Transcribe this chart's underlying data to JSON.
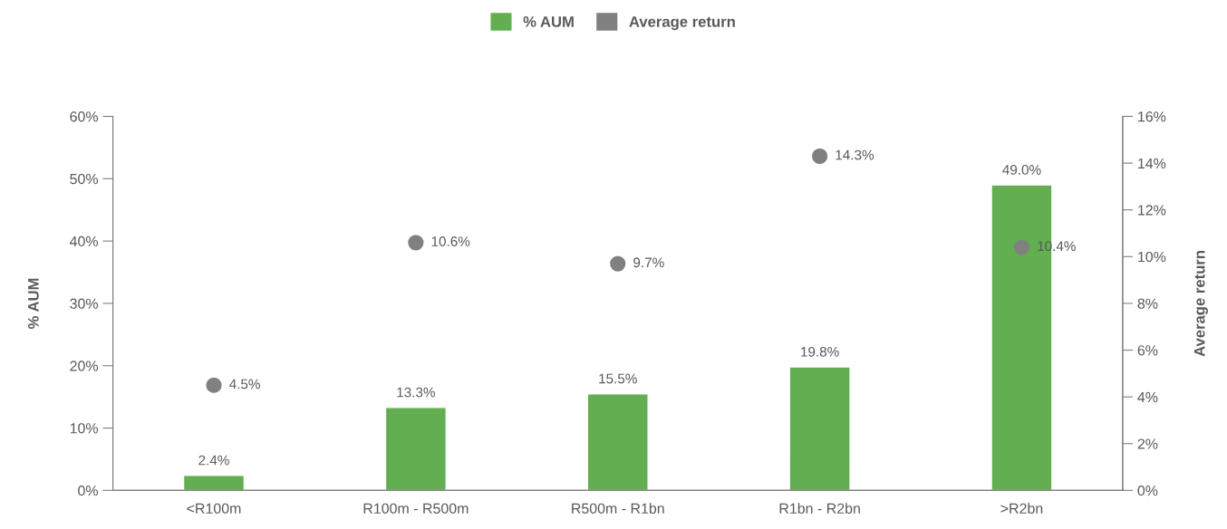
{
  "chart_data": {
    "type": "bar",
    "categories": [
      "<R100m",
      "R100m - R500m",
      "R500m - R1bn",
      "R1bn - R2bn",
      ">R2bn"
    ],
    "ylabel": "% AUM",
    "y2label": "Average return",
    "series": [
      {
        "name": "% AUM",
        "color": "#62ae50",
        "values": [
          2.4,
          13.3,
          15.5,
          19.8,
          49.0
        ],
        "value_labels": [
          "2.4%",
          "13.3%",
          "15.5%",
          "19.8%",
          "49.0%"
        ]
      },
      {
        "name": "Average return",
        "type": "scatter",
        "axis": "y2",
        "marker": "circle",
        "color": "#808080",
        "values": [
          4.5,
          10.6,
          9.7,
          14.3,
          10.4
        ],
        "value_labels": [
          "4.5%",
          "10.6%",
          "9.7%",
          "14.3%",
          "10.4%"
        ]
      }
    ],
    "ylim": [
      0,
      60
    ],
    "yticks": [
      {
        "value": 0,
        "label": "0%"
      },
      {
        "value": 10,
        "label": "10%"
      },
      {
        "value": 20,
        "label": "20%"
      },
      {
        "value": 30,
        "label": "30%"
      },
      {
        "value": 40,
        "label": "40%"
      },
      {
        "value": 50,
        "label": "50%"
      },
      {
        "value": 60,
        "label": "60%"
      }
    ],
    "y2lim": [
      0,
      16
    ],
    "y2ticks": [
      {
        "value": 0,
        "label": "0%"
      },
      {
        "value": 2,
        "label": "2%"
      },
      {
        "value": 4,
        "label": "4%"
      },
      {
        "value": 6,
        "label": "6%"
      },
      {
        "value": 8,
        "label": "8%"
      },
      {
        "value": 10,
        "label": "10%"
      },
      {
        "value": 12,
        "label": "12%"
      },
      {
        "value": 14,
        "label": "14%"
      },
      {
        "value": 16,
        "label": "16%"
      }
    ],
    "legend": "top",
    "grid": false
  }
}
